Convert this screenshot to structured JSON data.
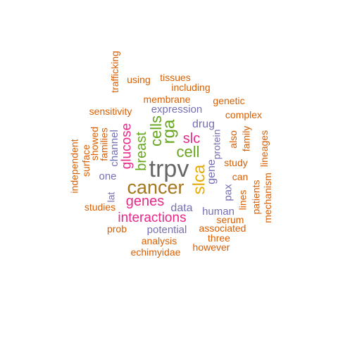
{
  "palette": {
    "gray": "#666666",
    "brown": "#a6761d",
    "orange": "#d95f02",
    "green": "#66a61e",
    "magenta": "#e7298a",
    "purple": "#7570b3",
    "gold": "#e6ab02"
  },
  "words": [
    {
      "text": "trpv",
      "color": "gray",
      "vertical": false
    },
    {
      "text": "cancer",
      "color": "brown",
      "vertical": false
    },
    {
      "text": "slca",
      "color": "gold",
      "vertical": true
    },
    {
      "text": "interactions",
      "color": "magenta",
      "vertical": false
    },
    {
      "text": "genes",
      "color": "magenta",
      "vertical": false
    },
    {
      "text": "glucose",
      "color": "magenta",
      "vertical": true
    },
    {
      "text": "breast",
      "color": "green",
      "vertical": true
    },
    {
      "text": "cells",
      "color": "green",
      "vertical": true
    },
    {
      "text": "rga",
      "color": "green",
      "vertical": true
    },
    {
      "text": "cell",
      "color": "green",
      "vertical": false
    },
    {
      "text": "slc",
      "color": "magenta",
      "vertical": false
    },
    {
      "text": "expression",
      "color": "purple",
      "vertical": false
    },
    {
      "text": "drug",
      "color": "purple",
      "vertical": false
    },
    {
      "text": "data",
      "color": "purple",
      "vertical": false
    },
    {
      "text": "human",
      "color": "purple",
      "vertical": false
    },
    {
      "text": "potential",
      "color": "purple",
      "vertical": false
    },
    {
      "text": "gene",
      "color": "purple",
      "vertical": true
    },
    {
      "text": "protein",
      "color": "purple",
      "vertical": true
    },
    {
      "text": "pax",
      "color": "purple",
      "vertical": true
    },
    {
      "text": "channel",
      "color": "purple",
      "vertical": true
    },
    {
      "text": "one",
      "color": "purple",
      "vertical": false
    },
    {
      "text": "lat",
      "color": "purple",
      "vertical": true
    },
    {
      "text": "membrane",
      "color": "orange",
      "vertical": false
    },
    {
      "text": "sensitivity",
      "color": "orange",
      "vertical": false
    },
    {
      "text": "using",
      "color": "orange",
      "vertical": false
    },
    {
      "text": "tissues",
      "color": "orange",
      "vertical": false
    },
    {
      "text": "including",
      "color": "orange",
      "vertical": false
    },
    {
      "text": "genetic",
      "color": "orange",
      "vertical": false
    },
    {
      "text": "complex",
      "color": "orange",
      "vertical": false
    },
    {
      "text": "trafficking",
      "color": "orange",
      "vertical": true
    },
    {
      "text": "showed",
      "color": "orange",
      "vertical": true
    },
    {
      "text": "families",
      "color": "orange",
      "vertical": true
    },
    {
      "text": "surface",
      "color": "orange",
      "vertical": true
    },
    {
      "text": "independent",
      "color": "orange",
      "vertical": true
    },
    {
      "text": "studies",
      "color": "orange",
      "vertical": false
    },
    {
      "text": "prob",
      "color": "orange",
      "vertical": false
    },
    {
      "text": "analysis",
      "color": "orange",
      "vertical": false
    },
    {
      "text": "echimyidae",
      "color": "orange",
      "vertical": false
    },
    {
      "text": "associated",
      "color": "orange",
      "vertical": false
    },
    {
      "text": "three",
      "color": "orange",
      "vertical": false
    },
    {
      "text": "however",
      "color": "orange",
      "vertical": false
    },
    {
      "text": "serum",
      "color": "orange",
      "vertical": false
    },
    {
      "text": "study",
      "color": "orange",
      "vertical": false
    },
    {
      "text": "can",
      "color": "orange",
      "vertical": false
    },
    {
      "text": "also",
      "color": "orange",
      "vertical": true
    },
    {
      "text": "family",
      "color": "orange",
      "vertical": true
    },
    {
      "text": "lineages",
      "color": "orange",
      "vertical": true
    },
    {
      "text": "lines",
      "color": "orange",
      "vertical": true
    },
    {
      "text": "patients",
      "color": "orange",
      "vertical": true
    },
    {
      "text": "mechanism",
      "color": "orange",
      "vertical": true
    }
  ]
}
